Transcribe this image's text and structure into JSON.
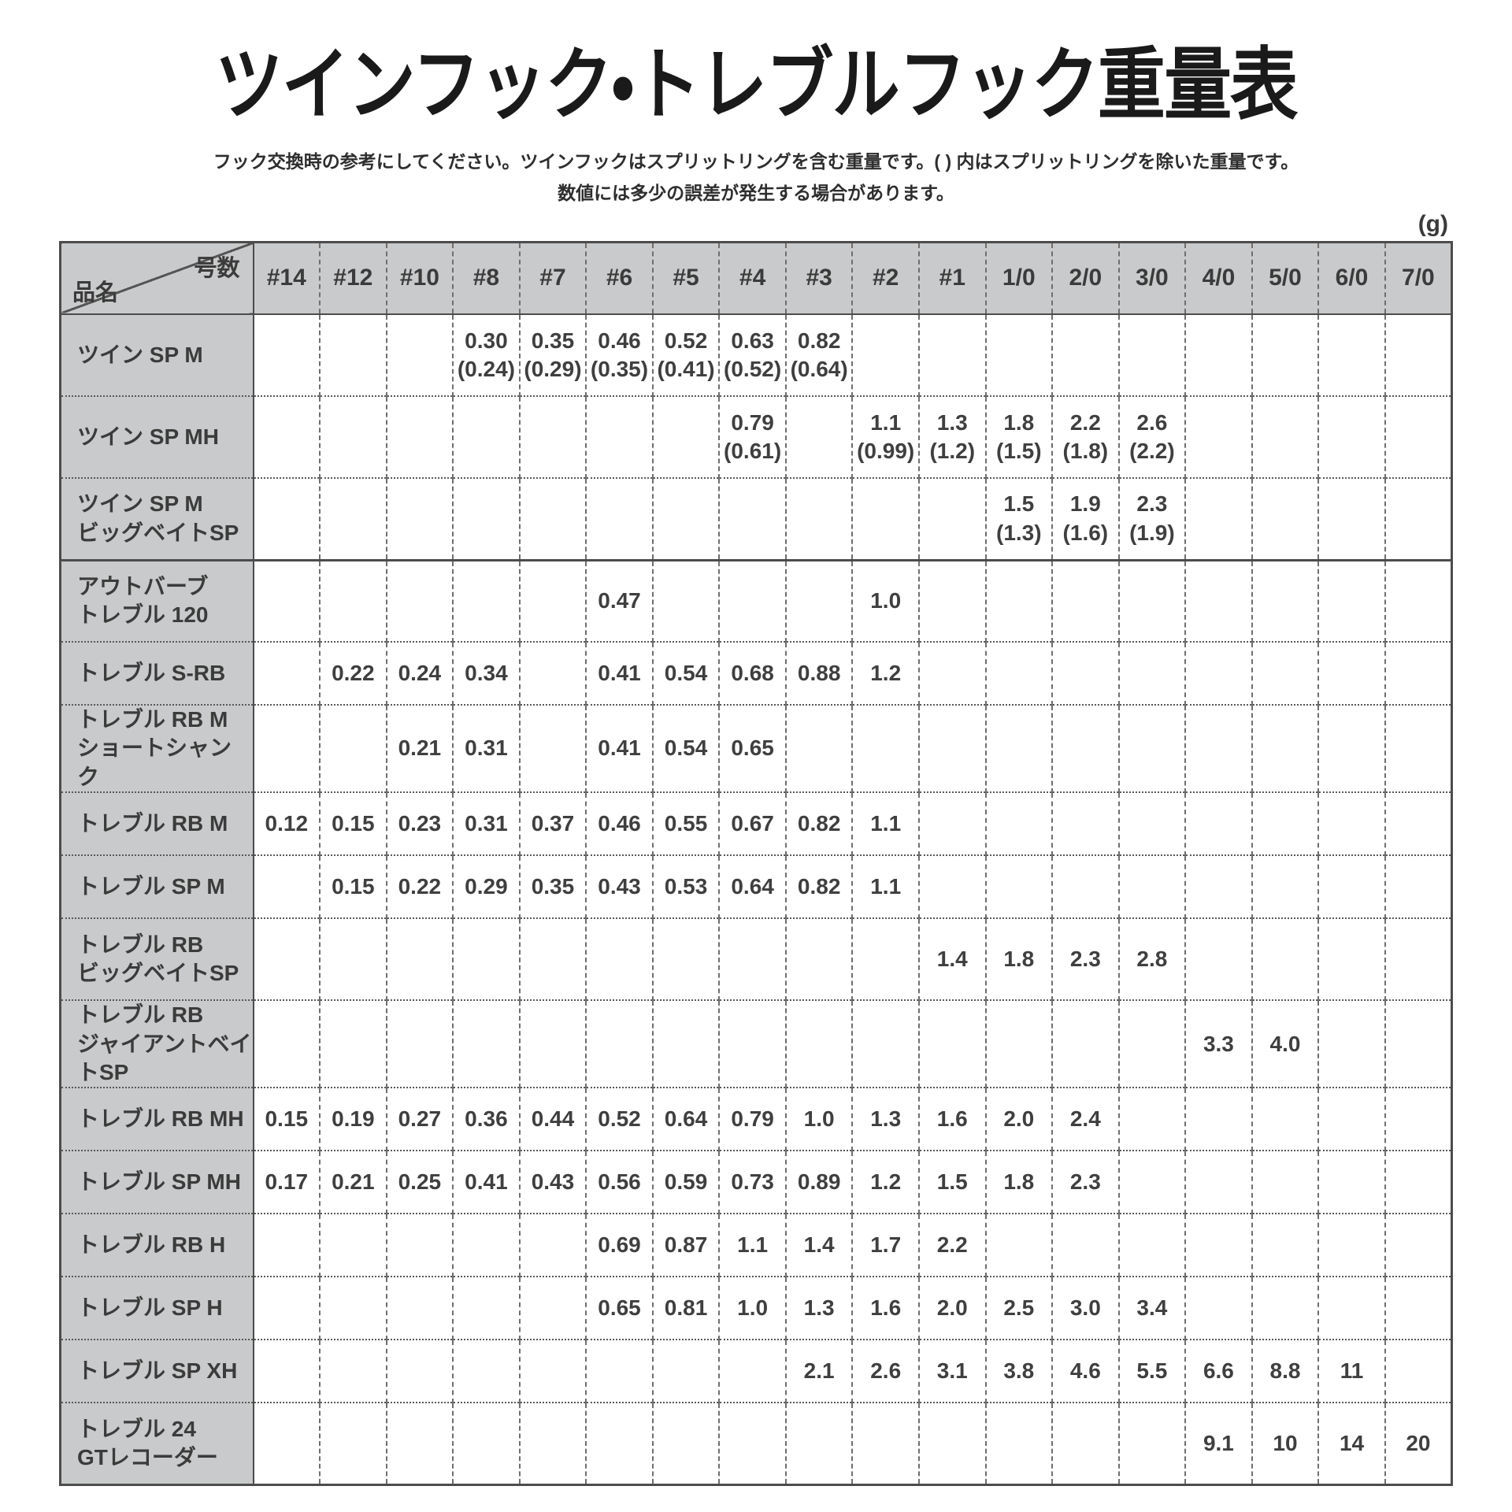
{
  "title": "ツインフック・トレブルフック重量表",
  "notes": [
    "フック交換時の参考にしてください。ツインフックはスプリットリングを含む重量です。( ) 内はスプリットリングを除いた重量です。",
    "数値には多少の誤差が発生する場合があります。"
  ],
  "unit_label": "(g)",
  "colors": {
    "header_gray": "#c9cacb",
    "border": "#4c4c4c",
    "text": "#3b3b3b"
  },
  "table": {
    "corner_top_right": "号数",
    "corner_bottom_left": "品名",
    "columns": [
      "#14",
      "#12",
      "#10",
      "#8",
      "#7",
      "#6",
      "#5",
      "#4",
      "#3",
      "#2",
      "#1",
      "1/0",
      "2/0",
      "3/0",
      "4/0",
      "5/0",
      "6/0",
      "7/0"
    ],
    "rows": [
      {
        "name": [
          "ツイン SP M"
        ],
        "group_end": false,
        "values": [
          "",
          "",
          "",
          "0.30\n(0.24)",
          "0.35\n(0.29)",
          "0.46\n(0.35)",
          "0.52\n(0.41)",
          "0.63\n(0.52)",
          "0.82\n(0.64)",
          "",
          "",
          "",
          "",
          "",
          "",
          "",
          "",
          ""
        ]
      },
      {
        "name": [
          "ツイン SP MH"
        ],
        "group_end": false,
        "values": [
          "",
          "",
          "",
          "",
          "",
          "",
          "",
          "0.79\n(0.61)",
          "",
          "1.1\n(0.99)",
          "1.3\n(1.2)",
          "1.8\n(1.5)",
          "2.2\n(1.8)",
          "2.6\n(2.2)",
          "",
          "",
          "",
          ""
        ]
      },
      {
        "name": [
          "ツイン SP M",
          "ビッグベイトSP"
        ],
        "group_end": true,
        "values": [
          "",
          "",
          "",
          "",
          "",
          "",
          "",
          "",
          "",
          "",
          "",
          "1.5\n(1.3)",
          "1.9\n(1.6)",
          "2.3\n(1.9)",
          "",
          "",
          "",
          ""
        ]
      },
      {
        "name": [
          "アウトバーブ",
          "トレブル 120"
        ],
        "group_end": false,
        "values": [
          "",
          "",
          "",
          "",
          "",
          "0.47",
          "",
          "",
          "",
          "1.0",
          "",
          "",
          "",
          "",
          "",
          "",
          "",
          ""
        ]
      },
      {
        "name": [
          "トレブル S-RB"
        ],
        "group_end": false,
        "values": [
          "",
          "0.22",
          "0.24",
          "0.34",
          "",
          "0.41",
          "0.54",
          "0.68",
          "0.88",
          "1.2",
          "",
          "",
          "",
          "",
          "",
          "",
          "",
          ""
        ]
      },
      {
        "name": [
          "トレブル RB M",
          "ショートシャンク"
        ],
        "group_end": false,
        "values": [
          "",
          "",
          "0.21",
          "0.31",
          "",
          "0.41",
          "0.54",
          "0.65",
          "",
          "",
          "",
          "",
          "",
          "",
          "",
          "",
          "",
          ""
        ]
      },
      {
        "name": [
          "トレブル RB M"
        ],
        "group_end": false,
        "values": [
          "0.12",
          "0.15",
          "0.23",
          "0.31",
          "0.37",
          "0.46",
          "0.55",
          "0.67",
          "0.82",
          "1.1",
          "",
          "",
          "",
          "",
          "",
          "",
          "",
          ""
        ]
      },
      {
        "name": [
          "トレブル SP M"
        ],
        "group_end": false,
        "values": [
          "",
          "0.15",
          "0.22",
          "0.29",
          "0.35",
          "0.43",
          "0.53",
          "0.64",
          "0.82",
          "1.1",
          "",
          "",
          "",
          "",
          "",
          "",
          "",
          ""
        ]
      },
      {
        "name": [
          "トレブル RB",
          "ビッグベイトSP"
        ],
        "group_end": false,
        "values": [
          "",
          "",
          "",
          "",
          "",
          "",
          "",
          "",
          "",
          "",
          "1.4",
          "1.8",
          "2.3",
          "2.8",
          "",
          "",
          "",
          ""
        ]
      },
      {
        "name": [
          "トレブル RB",
          "ジャイアントベイトSP"
        ],
        "group_end": false,
        "values": [
          "",
          "",
          "",
          "",
          "",
          "",
          "",
          "",
          "",
          "",
          "",
          "",
          "",
          "",
          "3.3",
          "4.0",
          "",
          ""
        ]
      },
      {
        "name": [
          "トレブル RB MH"
        ],
        "group_end": false,
        "values": [
          "0.15",
          "0.19",
          "0.27",
          "0.36",
          "0.44",
          "0.52",
          "0.64",
          "0.79",
          "1.0",
          "1.3",
          "1.6",
          "2.0",
          "2.4",
          "",
          "",
          "",
          "",
          ""
        ]
      },
      {
        "name": [
          "トレブル SP MH"
        ],
        "group_end": false,
        "values": [
          "0.17",
          "0.21",
          "0.25",
          "0.41",
          "0.43",
          "0.56",
          "0.59",
          "0.73",
          "0.89",
          "1.2",
          "1.5",
          "1.8",
          "2.3",
          "",
          "",
          "",
          "",
          ""
        ]
      },
      {
        "name": [
          "トレブル RB H"
        ],
        "group_end": false,
        "values": [
          "",
          "",
          "",
          "",
          "",
          "0.69",
          "0.87",
          "1.1",
          "1.4",
          "1.7",
          "2.2",
          "",
          "",
          "",
          "",
          "",
          "",
          ""
        ]
      },
      {
        "name": [
          "トレブル SP H"
        ],
        "group_end": false,
        "values": [
          "",
          "",
          "",
          "",
          "",
          "0.65",
          "0.81",
          "1.0",
          "1.3",
          "1.6",
          "2.0",
          "2.5",
          "3.0",
          "3.4",
          "",
          "",
          "",
          ""
        ]
      },
      {
        "name": [
          "トレブル SP XH"
        ],
        "group_end": false,
        "values": [
          "",
          "",
          "",
          "",
          "",
          "",
          "",
          "",
          "2.1",
          "2.6",
          "3.1",
          "3.8",
          "4.6",
          "5.5",
          "6.6",
          "8.8",
          "11",
          ""
        ]
      },
      {
        "name": [
          "トレブル 24",
          "GTレコーダー"
        ],
        "group_end": false,
        "values": [
          "",
          "",
          "",
          "",
          "",
          "",
          "",
          "",
          "",
          "",
          "",
          "",
          "",
          "",
          "9.1",
          "10",
          "14",
          "20"
        ]
      }
    ]
  }
}
